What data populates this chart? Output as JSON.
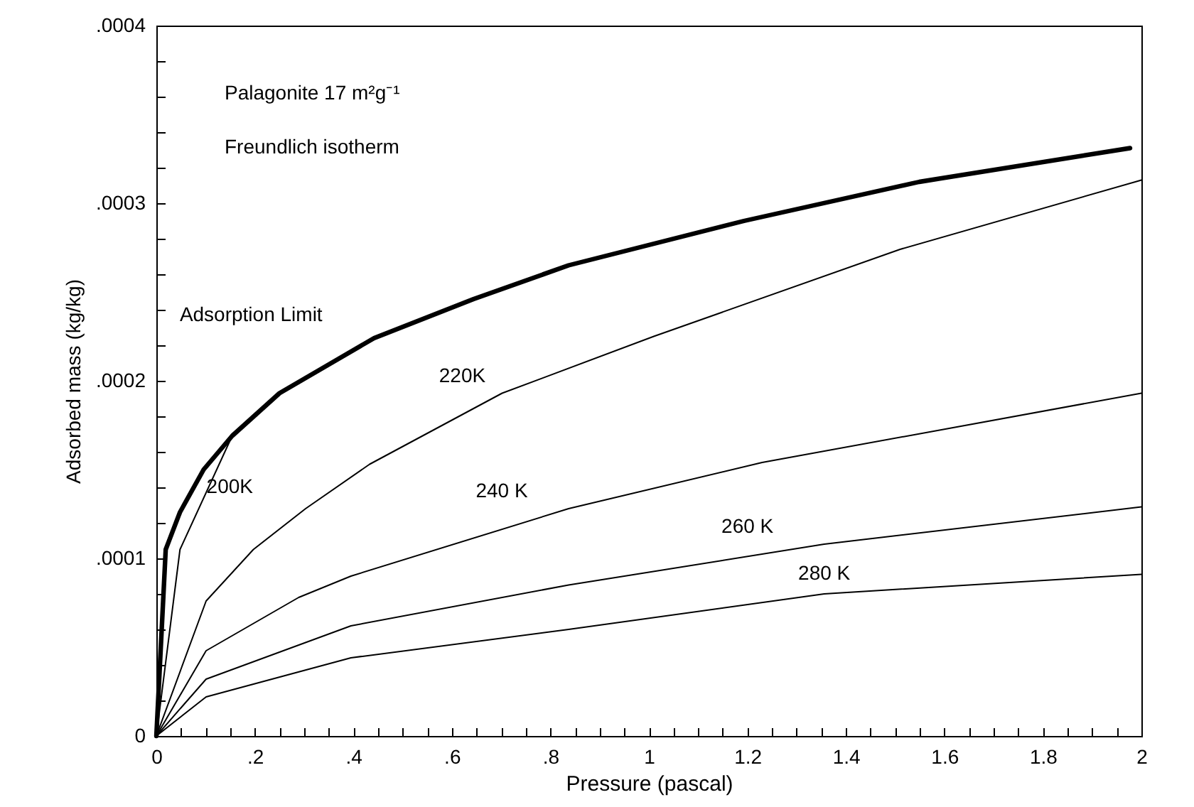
{
  "chart_data": {
    "type": "line",
    "xlabel": "Pressure (pascal)",
    "ylabel": "Adsorbed mass (kg/kg)",
    "annotations": [
      "Palagonite 17 m²g⁻¹",
      "Freundlich isotherm"
    ],
    "xlim": [
      0,
      2
    ],
    "ylim": [
      0,
      0.0004
    ],
    "xticks": [
      {
        "value": 0,
        "label": "0"
      },
      {
        "value": 0.05,
        "label": null
      },
      {
        "value": 0.1,
        "label": null
      },
      {
        "value": 0.15,
        "label": null
      },
      {
        "value": 0.2,
        "label": ".2"
      },
      {
        "value": 0.25,
        "label": null
      },
      {
        "value": 0.3,
        "label": null
      },
      {
        "value": 0.35,
        "label": null
      },
      {
        "value": 0.4,
        "label": ".4"
      },
      {
        "value": 0.45,
        "label": null
      },
      {
        "value": 0.5,
        "label": null
      },
      {
        "value": 0.55,
        "label": null
      },
      {
        "value": 0.6,
        "label": ".6"
      },
      {
        "value": 0.65,
        "label": null
      },
      {
        "value": 0.7,
        "label": null
      },
      {
        "value": 0.75,
        "label": null
      },
      {
        "value": 0.8,
        "label": ".8"
      },
      {
        "value": 0.85,
        "label": null
      },
      {
        "value": 0.9,
        "label": null
      },
      {
        "value": 0.95,
        "label": null
      },
      {
        "value": 1,
        "label": "1"
      },
      {
        "value": 1.05,
        "label": null
      },
      {
        "value": 1.1,
        "label": null
      },
      {
        "value": 1.15,
        "label": null
      },
      {
        "value": 1.2,
        "label": "1.2"
      },
      {
        "value": 1.25,
        "label": null
      },
      {
        "value": 1.3,
        "label": null
      },
      {
        "value": 1.35,
        "label": null
      },
      {
        "value": 1.4,
        "label": "1.4"
      },
      {
        "value": 1.45,
        "label": null
      },
      {
        "value": 1.5,
        "label": null
      },
      {
        "value": 1.55,
        "label": null
      },
      {
        "value": 1.6,
        "label": "1.6"
      },
      {
        "value": 1.65,
        "label": null
      },
      {
        "value": 1.7,
        "label": null
      },
      {
        "value": 1.75,
        "label": null
      },
      {
        "value": 1.8,
        "label": "1.8"
      },
      {
        "value": 1.85,
        "label": null
      },
      {
        "value": 1.9,
        "label": null
      },
      {
        "value": 1.95,
        "label": null
      },
      {
        "value": 2,
        "label": "2"
      }
    ],
    "yticks": [
      {
        "value": 0,
        "label": "0"
      },
      {
        "value": 2e-05,
        "label": null
      },
      {
        "value": 4e-05,
        "label": null
      },
      {
        "value": 6e-05,
        "label": null
      },
      {
        "value": 8e-05,
        "label": null
      },
      {
        "value": 0.0001,
        "label": ".0001"
      },
      {
        "value": 0.00012,
        "label": null
      },
      {
        "value": 0.00014,
        "label": null
      },
      {
        "value": 0.00016,
        "label": null
      },
      {
        "value": 0.00018,
        "label": null
      },
      {
        "value": 0.0002,
        "label": ".0002"
      },
      {
        "value": 0.00022,
        "label": null
      },
      {
        "value": 0.00024,
        "label": null
      },
      {
        "value": 0.00026,
        "label": null
      },
      {
        "value": 0.00028,
        "label": null
      },
      {
        "value": 0.0003,
        "label": ".0003"
      },
      {
        "value": 0.00032,
        "label": null
      },
      {
        "value": 0.00034,
        "label": null
      },
      {
        "value": 0.00036,
        "label": null
      },
      {
        "value": 0.00038,
        "label": null
      },
      {
        "value": 0.0004,
        "label": ".0004"
      }
    ],
    "series": [
      {
        "name": "Adsorption Limit",
        "color": "#000000",
        "x": [
          0,
          0.019,
          0.048,
          0.096,
          0.154,
          0.25,
          0.442,
          0.644,
          0.837,
          1.193,
          1.549,
          1.977
        ],
        "values": [
          0,
          0.000105,
          0.000126,
          0.00015,
          0.000169,
          0.000193,
          0.000224,
          0.000246,
          0.000265,
          0.00029,
          0.000312,
          0.000331
        ]
      },
      {
        "name": "200K",
        "color": "#000000",
        "x": [
          0,
          0.048,
          0.154
        ],
        "values": [
          0,
          0.000105,
          0.000169
        ]
      },
      {
        "name": "220K",
        "color": "#000000",
        "x": [
          0,
          0.101,
          0.197,
          0.303,
          0.433,
          0.702,
          1.01,
          1.51,
          2
        ],
        "values": [
          0,
          7.6e-05,
          0.000105,
          0.000128,
          0.000153,
          0.000193,
          0.000225,
          0.000274,
          0.000313
        ]
      },
      {
        "name": "240 K",
        "color": "#000000",
        "x": [
          0,
          0.101,
          0.289,
          0.395,
          0.837,
          1.23,
          2
        ],
        "values": [
          0,
          4.8e-05,
          7.8e-05,
          9e-05,
          0.000128,
          0.000154,
          0.000193
        ]
      },
      {
        "name": "260 K",
        "color": "#000000",
        "x": [
          0,
          0.101,
          0.395,
          0.837,
          1.356,
          2
        ],
        "values": [
          0,
          3.2e-05,
          6.2e-05,
          8.5e-05,
          0.000108,
          0.000129
        ]
      },
      {
        "name": "280 K",
        "color": "#000000",
        "x": [
          0,
          0.101,
          0.395,
          0.837,
          1.356,
          2
        ],
        "values": [
          0,
          2.2e-05,
          4.4e-05,
          6e-05,
          8e-05,
          9.1e-05
        ]
      }
    ]
  }
}
